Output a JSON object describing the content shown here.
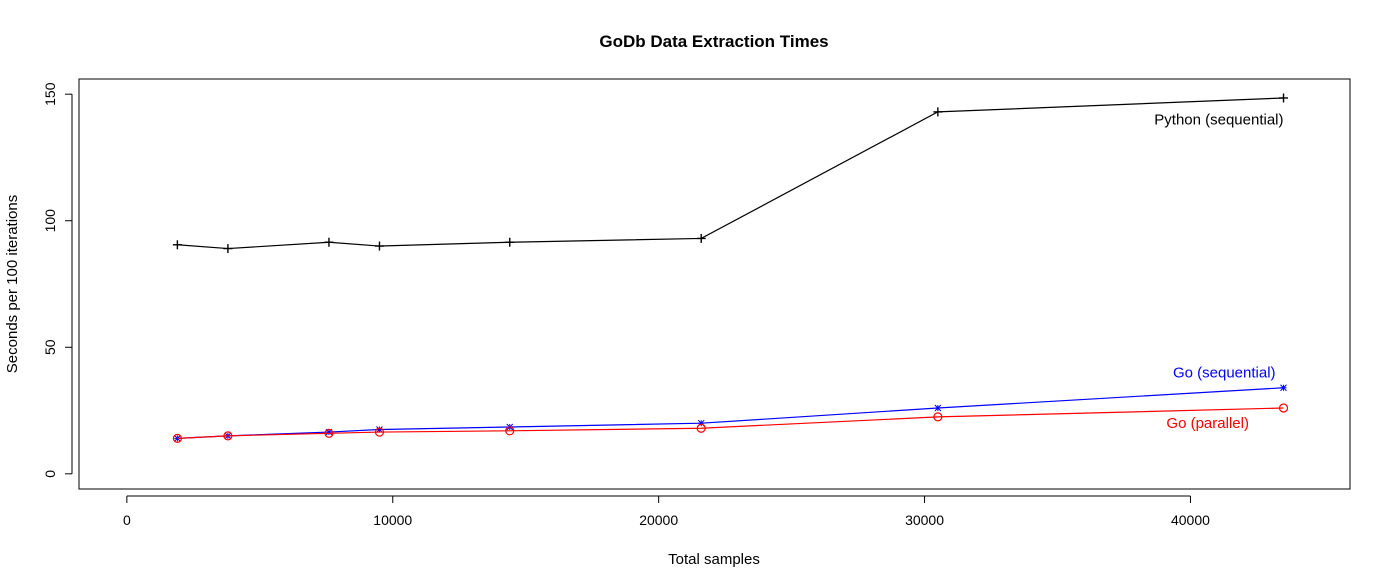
{
  "chart_data": {
    "type": "line",
    "title": "GoDb Data Extraction Times",
    "xlabel": "Total samples",
    "ylabel": "Seconds per 100 iterations",
    "xlim": [
      -1800,
      46000
    ],
    "ylim": [
      -6,
      156
    ],
    "xticks": [
      0,
      10000,
      20000,
      30000,
      40000
    ],
    "yticks": [
      0,
      50,
      100,
      150
    ],
    "x": [
      1900,
      3800,
      7600,
      9500,
      14400,
      21600,
      30500,
      43500
    ],
    "grid": false,
    "legend": "labels next to lines",
    "series": [
      {
        "name": "Python (sequential)",
        "color": "#000000",
        "marker": "plus",
        "values": [
          90.5,
          89,
          91.5,
          90,
          91.5,
          93,
          143,
          148.5
        ],
        "label_anchor": {
          "x": 43500,
          "y": 140,
          "align": "end"
        }
      },
      {
        "name": "Go (sequential)",
        "color": "#0000ff",
        "marker": "star",
        "values": [
          14,
          15,
          16.5,
          17.5,
          18.5,
          20,
          26,
          34
        ],
        "label_anchor": {
          "x": 43200,
          "y": 40,
          "align": "end"
        }
      },
      {
        "name": "Go (parallel)",
        "color": "#ff0000",
        "marker": "circle",
        "values": [
          14,
          15,
          16,
          16.5,
          17,
          18,
          22.5,
          26
        ],
        "label_anchor": {
          "x": 42200,
          "y": 20,
          "align": "end"
        }
      }
    ]
  }
}
